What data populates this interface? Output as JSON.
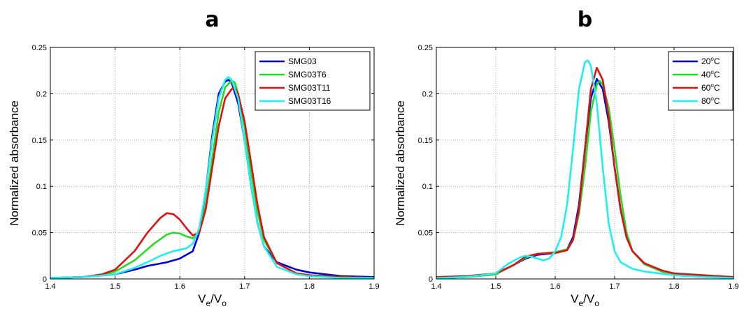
{
  "chart_data": [
    {
      "type": "line",
      "title": "a",
      "xlabel": {
        "main": "V",
        "sub1": "e",
        "sep": "/",
        "main2": "V",
        "sub2": "o"
      },
      "ylabel": "Normalized absorbance",
      "xlim": [
        1.4,
        1.9
      ],
      "ylim": [
        0,
        0.25
      ],
      "xticks": [
        "1.4",
        "1.5",
        "1.6",
        "1.7",
        "1.8",
        "1.9"
      ],
      "yticks": [
        "0",
        "0.05",
        "0.1",
        "0.15",
        "0.2",
        "0.25"
      ],
      "grid": true,
      "legend_position": "top-right",
      "series": [
        {
          "name": "SMG03",
          "color": "#0000dd",
          "x": [
            1.4,
            1.45,
            1.5,
            1.53,
            1.55,
            1.58,
            1.6,
            1.62,
            1.63,
            1.64,
            1.65,
            1.66,
            1.67,
            1.675,
            1.68,
            1.69,
            1.7,
            1.71,
            1.72,
            1.73,
            1.75,
            1.78,
            1.8,
            1.85,
            1.9
          ],
          "y": [
            0.001,
            0.002,
            0.005,
            0.01,
            0.014,
            0.018,
            0.022,
            0.03,
            0.05,
            0.095,
            0.155,
            0.2,
            0.213,
            0.215,
            0.212,
            0.19,
            0.15,
            0.1,
            0.06,
            0.035,
            0.018,
            0.01,
            0.007,
            0.003,
            0.002
          ]
        },
        {
          "name": "SMG03T6",
          "color": "#22dd22",
          "x": [
            1.4,
            1.45,
            1.48,
            1.5,
            1.53,
            1.56,
            1.58,
            1.59,
            1.6,
            1.61,
            1.62,
            1.63,
            1.64,
            1.65,
            1.66,
            1.67,
            1.68,
            1.685,
            1.69,
            1.7,
            1.71,
            1.72,
            1.73,
            1.75,
            1.78,
            1.8,
            1.85,
            1.9
          ],
          "y": [
            0.001,
            0.002,
            0.004,
            0.008,
            0.02,
            0.038,
            0.048,
            0.05,
            0.049,
            0.046,
            0.044,
            0.05,
            0.08,
            0.13,
            0.18,
            0.207,
            0.214,
            0.212,
            0.2,
            0.165,
            0.115,
            0.072,
            0.042,
            0.017,
            0.006,
            0.004,
            0.002,
            0.001
          ]
        },
        {
          "name": "SMG03T11",
          "color": "#dd1111",
          "x": [
            1.4,
            1.45,
            1.48,
            1.5,
            1.53,
            1.55,
            1.57,
            1.58,
            1.59,
            1.6,
            1.61,
            1.62,
            1.63,
            1.64,
            1.65,
            1.66,
            1.67,
            1.68,
            1.685,
            1.69,
            1.7,
            1.71,
            1.72,
            1.73,
            1.75,
            1.78,
            1.8,
            1.85,
            1.9
          ],
          "y": [
            0.001,
            0.002,
            0.005,
            0.01,
            0.03,
            0.05,
            0.066,
            0.071,
            0.07,
            0.064,
            0.055,
            0.047,
            0.05,
            0.075,
            0.12,
            0.165,
            0.195,
            0.205,
            0.206,
            0.2,
            0.17,
            0.125,
            0.08,
            0.045,
            0.017,
            0.006,
            0.004,
            0.002,
            0.001
          ]
        },
        {
          "name": "SMG03T16",
          "color": "#22eeee",
          "x": [
            1.4,
            1.45,
            1.5,
            1.53,
            1.55,
            1.57,
            1.59,
            1.61,
            1.62,
            1.63,
            1.64,
            1.65,
            1.66,
            1.67,
            1.675,
            1.68,
            1.69,
            1.7,
            1.71,
            1.72,
            1.73,
            1.75,
            1.78,
            1.8,
            1.85,
            1.9
          ],
          "y": [
            0.001,
            0.002,
            0.005,
            0.012,
            0.018,
            0.025,
            0.03,
            0.033,
            0.038,
            0.055,
            0.095,
            0.15,
            0.195,
            0.215,
            0.218,
            0.215,
            0.195,
            0.15,
            0.1,
            0.06,
            0.035,
            0.013,
            0.005,
            0.003,
            0.001,
            0.001
          ]
        }
      ]
    },
    {
      "type": "line",
      "title": "b",
      "xlabel": {
        "main": "V",
        "sub1": "e",
        "sep": "/",
        "main2": "V",
        "sub2": "o"
      },
      "ylabel": "Normalized absorbance",
      "xlim": [
        1.4,
        1.9
      ],
      "ylim": [
        0,
        0.25
      ],
      "xticks": [
        "1.4",
        "1.5",
        "1.6",
        "1.7",
        "1.8",
        "1.9"
      ],
      "yticks": [
        "0",
        "0.05",
        "0.1",
        "0.15",
        "0.2",
        "0.25"
      ],
      "grid": true,
      "legend_position": "top-right",
      "series": [
        {
          "name": {
            "num": "20",
            "sup": "o",
            "unit": "C"
          },
          "color": "#0000dd",
          "x": [
            1.4,
            1.45,
            1.5,
            1.53,
            1.55,
            1.57,
            1.6,
            1.62,
            1.63,
            1.64,
            1.65,
            1.66,
            1.67,
            1.68,
            1.69,
            1.7,
            1.71,
            1.72,
            1.73,
            1.75,
            1.78,
            1.8,
            1.85,
            1.9
          ],
          "y": [
            0.001,
            0.002,
            0.005,
            0.015,
            0.022,
            0.026,
            0.028,
            0.032,
            0.045,
            0.08,
            0.14,
            0.195,
            0.216,
            0.205,
            0.17,
            0.12,
            0.075,
            0.045,
            0.03,
            0.016,
            0.008,
            0.005,
            0.003,
            0.002
          ]
        },
        {
          "name": {
            "num": "40",
            "sup": "o",
            "unit": "C"
          },
          "color": "#22dd22",
          "x": [
            1.4,
            1.45,
            1.5,
            1.53,
            1.55,
            1.57,
            1.6,
            1.62,
            1.63,
            1.64,
            1.65,
            1.66,
            1.67,
            1.675,
            1.68,
            1.69,
            1.7,
            1.71,
            1.72,
            1.73,
            1.75,
            1.78,
            1.8,
            1.85,
            1.9
          ],
          "y": [
            0.001,
            0.002,
            0.005,
            0.015,
            0.023,
            0.027,
            0.029,
            0.032,
            0.042,
            0.07,
            0.12,
            0.18,
            0.21,
            0.214,
            0.21,
            0.185,
            0.14,
            0.09,
            0.05,
            0.03,
            0.016,
            0.008,
            0.005,
            0.003,
            0.002
          ]
        },
        {
          "name": {
            "num": "60",
            "sup": "o",
            "unit": "C"
          },
          "color": "#dd1111",
          "x": [
            1.4,
            1.45,
            1.5,
            1.53,
            1.55,
            1.57,
            1.6,
            1.62,
            1.63,
            1.64,
            1.65,
            1.66,
            1.67,
            1.68,
            1.69,
            1.7,
            1.71,
            1.72,
            1.73,
            1.75,
            1.78,
            1.8,
            1.85,
            1.9
          ],
          "y": [
            0.002,
            0.003,
            0.006,
            0.015,
            0.024,
            0.027,
            0.028,
            0.031,
            0.042,
            0.075,
            0.14,
            0.205,
            0.228,
            0.215,
            0.175,
            0.12,
            0.075,
            0.045,
            0.03,
            0.017,
            0.009,
            0.006,
            0.004,
            0.002
          ]
        },
        {
          "name": {
            "num": "80",
            "sup": "o",
            "unit": "C"
          },
          "color": "#22eeee",
          "x": [
            1.4,
            1.45,
            1.5,
            1.52,
            1.54,
            1.55,
            1.56,
            1.58,
            1.59,
            1.6,
            1.61,
            1.62,
            1.63,
            1.64,
            1.65,
            1.655,
            1.66,
            1.67,
            1.68,
            1.69,
            1.7,
            1.71,
            1.73,
            1.75,
            1.8,
            1.85,
            1.9
          ],
          "y": [
            0.001,
            0.002,
            0.006,
            0.016,
            0.023,
            0.025,
            0.024,
            0.02,
            0.022,
            0.03,
            0.045,
            0.08,
            0.14,
            0.205,
            0.234,
            0.236,
            0.23,
            0.19,
            0.12,
            0.06,
            0.03,
            0.018,
            0.011,
            0.008,
            0.004,
            0.002,
            0.001
          ]
        }
      ]
    }
  ]
}
